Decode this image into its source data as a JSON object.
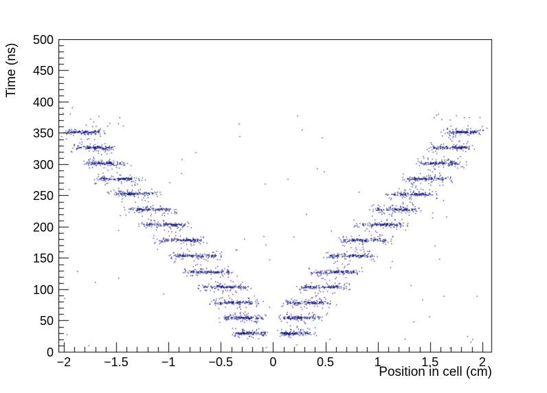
{
  "chart_data": {
    "type": "scatter",
    "title": "",
    "xlabel": "Position in cell (cm)",
    "ylabel": "Time (ns)",
    "xlim": [
      -2.052,
      2.086
    ],
    "ylim": [
      0,
      500
    ],
    "grid": false,
    "legend": false,
    "x_ticks": {
      "values": [
        -2,
        -1.5,
        -1,
        -0.5,
        0,
        0.5,
        1,
        1.5,
        2
      ],
      "labels": [
        "−2",
        "−1.5",
        "−1",
        "−0.5",
        "0",
        "0.5",
        "1",
        "1.5",
        "2"
      ],
      "minor_step": 0.1
    },
    "y_ticks": {
      "values": [
        0,
        50,
        100,
        150,
        200,
        250,
        300,
        350,
        400,
        450,
        500
      ],
      "labels": [
        "0",
        "50",
        "100",
        "150",
        "200",
        "250",
        "300",
        "350",
        "400",
        "450",
        "500"
      ],
      "minor_step": 10
    },
    "marker_color": "#14148c",
    "axis_color": "#000000",
    "background_color": "#ffffff",
    "scatter_model": {
      "seed": 1337,
      "bands": [
        {
          "t": 30,
          "x1": 0.07,
          "x2": 0.36
        },
        {
          "t": 55,
          "x1": 0.09,
          "x2": 0.46
        },
        {
          "t": 79,
          "x1": 0.14,
          "x2": 0.56
        },
        {
          "t": 104,
          "x1": 0.27,
          "x2": 0.68
        },
        {
          "t": 128,
          "x1": 0.4,
          "x2": 0.81
        },
        {
          "t": 154,
          "x1": 0.54,
          "x2": 0.95
        },
        {
          "t": 179,
          "x1": 0.68,
          "x2": 1.09
        },
        {
          "t": 204,
          "x1": 0.83,
          "x2": 1.23
        },
        {
          "t": 228,
          "x1": 0.98,
          "x2": 1.38
        },
        {
          "t": 253,
          "x1": 1.13,
          "x2": 1.52
        },
        {
          "t": 277,
          "x1": 1.28,
          "x2": 1.66
        },
        {
          "t": 302,
          "x1": 1.41,
          "x2": 1.79
        },
        {
          "t": 327,
          "x1": 1.53,
          "x2": 1.88
        },
        {
          "t": 352,
          "x1": 1.66,
          "x2": 1.97
        }
      ],
      "band_counts": {
        "core": 70,
        "clump": 26,
        "halo": 44,
        "bridge": 12
      },
      "core_t_jitter": 4,
      "clump_t_jitter": 2,
      "halo_t_jitter": 12,
      "top_sparse": {
        "per_arm": 13,
        "t_min": 355,
        "t_max": 392,
        "x_min": 1.45,
        "x_max": 2.02
      },
      "noise": {
        "count": 85,
        "x_min": -2.0,
        "x_max": 2.05,
        "t_min": 4,
        "t_max": 388
      },
      "center_gap_halfwidth": 0.055
    }
  }
}
